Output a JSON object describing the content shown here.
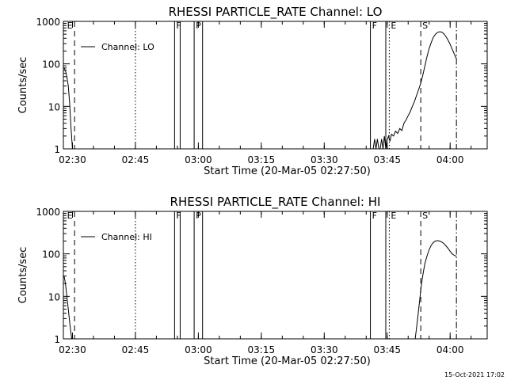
{
  "footer_timestamp": "15-Oct-2021 17:02",
  "chart_data": [
    {
      "type": "line",
      "title": "RHESSI PARTICLE_RATE Channel: LO",
      "xlabel": "Start Time (20-Mar-05 02:27:50)",
      "ylabel": "Counts/sec",
      "yscale": "log",
      "xlim": [
        "02:27:50",
        "04:08:50"
      ],
      "ylim": [
        1,
        1000
      ],
      "x_ticks": [
        "02:30",
        "02:45",
        "03:00",
        "03:15",
        "03:30",
        "03:45",
        "04:00"
      ],
      "y_ticks": [
        "1",
        "10",
        "100",
        "1000"
      ],
      "legend": {
        "label": "Channel: LO",
        "placement": "top-left"
      },
      "markers": [
        {
          "label": "E",
          "x": "02:28:20",
          "style": "none"
        },
        {
          "label": "",
          "x": "02:30:30",
          "style": "dashed"
        },
        {
          "label": "",
          "x": "02:45:00",
          "style": "dotted"
        },
        {
          "label": "F",
          "x": "02:54:20",
          "style": "solid"
        },
        {
          "label": "",
          "x": "02:55:40",
          "style": "solid"
        },
        {
          "label": "P",
          "x": "02:59:00",
          "style": "solid"
        },
        {
          "label": "",
          "x": "03:01:00",
          "style": "solid"
        },
        {
          "label": "F",
          "x": "03:41:00",
          "style": "solid"
        },
        {
          "label": "",
          "x": "03:44:40",
          "style": "solid"
        },
        {
          "label": "E",
          "x": "03:45:30",
          "style": "dotted"
        },
        {
          "label": "S",
          "x": "03:53:00",
          "style": "dashed"
        },
        {
          "label": "",
          "x": "04:01:30",
          "style": "dashdot"
        }
      ],
      "series": [
        {
          "name": "Channel: LO",
          "segments": [
            [
              [
                "02:28:00",
                80
              ],
              [
                "02:28:20",
                70
              ],
              [
                "02:28:40",
                50
              ],
              [
                "02:29:00",
                30
              ],
              [
                "02:29:20",
                12
              ],
              [
                "02:29:30",
                6
              ],
              [
                "02:29:40",
                3
              ],
              [
                "02:29:50",
                1.7
              ],
              [
                "02:30:00",
                1
              ]
            ],
            [
              [
                "03:41:40",
                1
              ],
              [
                "03:42:00",
                1.7
              ],
              [
                "03:42:20",
                1
              ],
              [
                "03:42:40",
                1.7
              ],
              [
                "03:43:00",
                1
              ],
              [
                "03:43:20",
                1
              ],
              [
                "03:43:40",
                1.7
              ],
              [
                "03:44:00",
                1
              ],
              [
                "03:44:20",
                2
              ],
              [
                "03:44:40",
                1
              ],
              [
                "03:45:00",
                1.6
              ],
              [
                "03:45:20",
                2
              ],
              [
                "03:45:40",
                1.5
              ],
              [
                "03:46:00",
                2.2
              ],
              [
                "03:46:30",
                2
              ],
              [
                "03:47:00",
                2.6
              ],
              [
                "03:47:30",
                2.3
              ],
              [
                "03:48:00",
                3
              ],
              [
                "03:48:30",
                2.7
              ],
              [
                "03:49:00",
                4
              ],
              [
                "03:49:30",
                4.8
              ],
              [
                "03:50:00",
                6
              ],
              [
                "03:50:30",
                7.5
              ],
              [
                "03:51:00",
                10
              ],
              [
                "03:51:30",
                13
              ],
              [
                "03:52:00",
                18
              ],
              [
                "03:52:30",
                25
              ],
              [
                "03:53:00",
                35
              ],
              [
                "03:53:30",
                55
              ],
              [
                "03:54:00",
                90
              ],
              [
                "03:54:30",
                150
              ],
              [
                "03:55:00",
                230
              ],
              [
                "03:55:30",
                320
              ],
              [
                "03:56:00",
                420
              ],
              [
                "03:56:30",
                500
              ],
              [
                "03:57:00",
                550
              ],
              [
                "03:57:30",
                570
              ],
              [
                "03:58:00",
                560
              ],
              [
                "03:58:30",
                510
              ],
              [
                "03:59:00",
                440
              ],
              [
                "03:59:30",
                360
              ],
              [
                "04:00:00",
                290
              ],
              [
                "04:00:30",
                220
              ],
              [
                "04:01:00",
                170
              ],
              [
                "04:01:30",
                130
              ]
            ]
          ]
        }
      ]
    },
    {
      "type": "line",
      "title": "RHESSI PARTICLE_RATE Channel: HI",
      "xlabel": "Start Time (20-Mar-05 02:27:50)",
      "ylabel": "Counts/sec",
      "yscale": "log",
      "xlim": [
        "02:27:50",
        "04:08:50"
      ],
      "ylim": [
        1,
        1000
      ],
      "x_ticks": [
        "02:30",
        "02:45",
        "03:00",
        "03:15",
        "03:30",
        "03:45",
        "04:00"
      ],
      "y_ticks": [
        "1",
        "10",
        "100",
        "1000"
      ],
      "legend": {
        "label": "Channel: HI",
        "placement": "top-left"
      },
      "markers": [
        {
          "label": "E",
          "x": "02:28:20",
          "style": "none"
        },
        {
          "label": "",
          "x": "02:30:30",
          "style": "dashed"
        },
        {
          "label": "",
          "x": "02:45:00",
          "style": "dotted"
        },
        {
          "label": "F",
          "x": "02:54:20",
          "style": "solid"
        },
        {
          "label": "",
          "x": "02:55:40",
          "style": "solid"
        },
        {
          "label": "P",
          "x": "02:59:00",
          "style": "solid"
        },
        {
          "label": "",
          "x": "03:01:00",
          "style": "solid"
        },
        {
          "label": "F",
          "x": "03:41:00",
          "style": "solid"
        },
        {
          "label": "",
          "x": "03:44:40",
          "style": "solid"
        },
        {
          "label": "E",
          "x": "03:45:30",
          "style": "dotted"
        },
        {
          "label": "S",
          "x": "03:53:00",
          "style": "dashed"
        },
        {
          "label": "",
          "x": "04:01:30",
          "style": "dashdot"
        }
      ],
      "series": [
        {
          "name": "Channel: HI",
          "segments": [
            [
              [
                "02:28:00",
                30
              ],
              [
                "02:28:20",
                20
              ],
              [
                "02:28:40",
                10
              ],
              [
                "02:29:00",
                5
              ],
              [
                "02:29:20",
                2.5
              ],
              [
                "02:29:40",
                1.3
              ],
              [
                "02:29:50",
                1
              ]
            ],
            [
              [
                "03:51:40",
                1
              ],
              [
                "03:52:00",
                1.8
              ],
              [
                "03:52:20",
                3.5
              ],
              [
                "03:52:40",
                7
              ],
              [
                "03:53:00",
                14
              ],
              [
                "03:53:20",
                25
              ],
              [
                "03:53:40",
                40
              ],
              [
                "03:54:00",
                60
              ],
              [
                "03:54:30",
                90
              ],
              [
                "03:55:00",
                125
              ],
              [
                "03:55:30",
                160
              ],
              [
                "03:56:00",
                185
              ],
              [
                "03:56:30",
                200
              ],
              [
                "03:57:00",
                205
              ],
              [
                "03:57:30",
                200
              ],
              [
                "03:58:00",
                190
              ],
              [
                "03:58:30",
                175
              ],
              [
                "03:59:00",
                155
              ],
              [
                "03:59:30",
                135
              ],
              [
                "04:00:00",
                115
              ],
              [
                "04:00:30",
                100
              ],
              [
                "04:01:00",
                92
              ],
              [
                "04:01:30",
                88
              ]
            ]
          ]
        }
      ]
    }
  ]
}
